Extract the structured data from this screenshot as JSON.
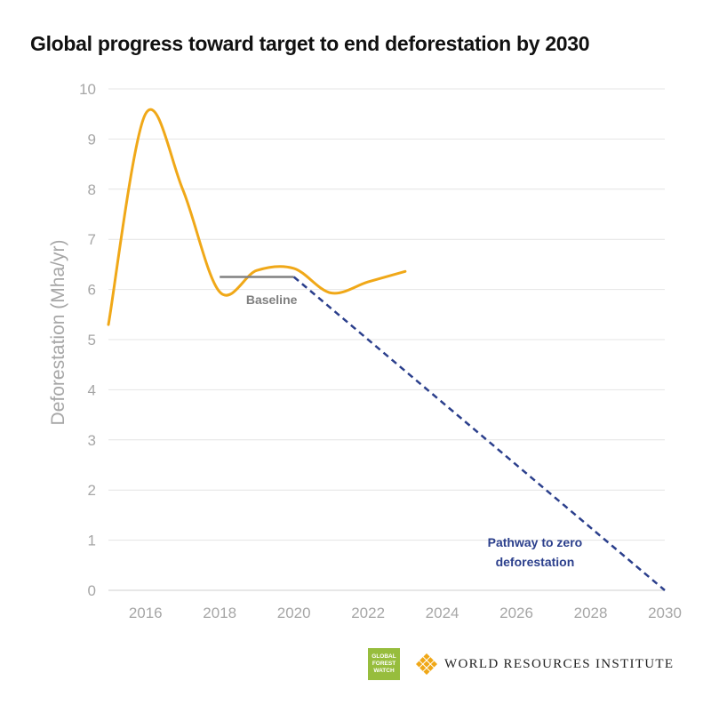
{
  "chart_data": {
    "type": "line",
    "title": "Global progress toward target to end deforestation by 2030",
    "ylabel": "Deforestation (Mha/yr)",
    "xlabel": "",
    "xlim": [
      2015,
      2030
    ],
    "ylim": [
      0,
      10
    ],
    "xticks": [
      "2016",
      "2018",
      "2020",
      "2022",
      "2024",
      "2026",
      "2028",
      "2030"
    ],
    "yticks": [
      "0",
      "1",
      "2",
      "3",
      "4",
      "5",
      "6",
      "7",
      "8",
      "9",
      "10"
    ],
    "grid": true,
    "series": [
      {
        "color": "#f0a818",
        "style": "solid",
        "x": [
          2015,
          2016,
          2017,
          2018,
          2019,
          2020,
          2021,
          2022,
          2023
        ],
        "y": [
          5.3,
          9.5,
          8.0,
          5.95,
          6.38,
          6.42,
          5.93,
          6.15,
          6.36
        ]
      },
      {
        "name": "Baseline",
        "color": "#808080",
        "style": "solid",
        "x": [
          2018,
          2020
        ],
        "y": [
          6.25,
          6.25
        ]
      },
      {
        "name": "Pathway to zero deforestation",
        "color": "#2b3f8c",
        "style": "dashed",
        "x": [
          2020,
          2030
        ],
        "y": [
          6.25,
          0
        ]
      }
    ],
    "annotations": [
      {
        "text": "Baseline",
        "x": 2019.4,
        "y": 5.8
      },
      {
        "text": [
          "Pathway to zero",
          "deforestation"
        ],
        "x": 2026.5,
        "y": 0.8
      }
    ]
  },
  "footer": {
    "gfw_logo_lines": [
      "GLOBAL",
      "FOREST",
      "WATCH"
    ],
    "wri_name": "WORLD RESOURCES INSTITUTE",
    "gfw_color": "#97bd3d",
    "wri_color": "#f0a818"
  }
}
